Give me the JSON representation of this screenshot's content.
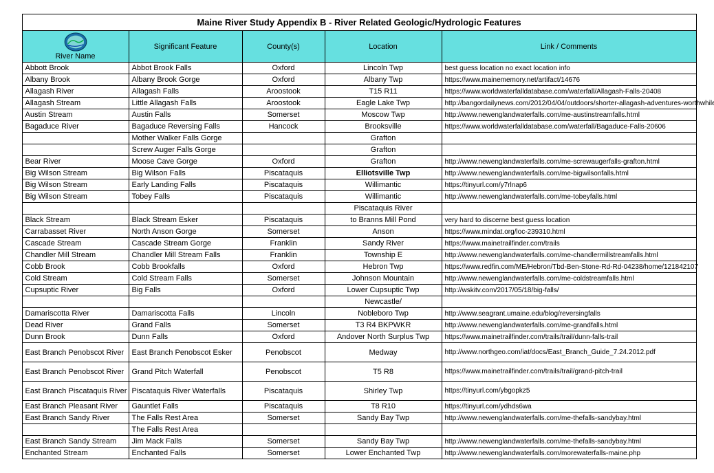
{
  "title": "Maine River Study Appendix B - River Related Geologic/Hydrologic Features",
  "header": {
    "bg_color": "#66e0e0",
    "river_name_label": "River Name",
    "feature_label": "Significant Feature",
    "county_label": "County(s)",
    "location_label": "Location",
    "link_label": "Link / Comments"
  },
  "rows": [
    {
      "r": "Abbott Brook",
      "f": "Abbot Brook Falls",
      "c": "Oxford",
      "l": "Lincoln Twp",
      "k": "best guess location no exact location info"
    },
    {
      "r": "Albany Brook",
      "f": "Albany Brook Gorge",
      "c": "Oxford",
      "l": "Albany Twp",
      "k": "https://www.mainememory.net/artifact/14676"
    },
    {
      "r": "Allagash River",
      "f": "Allagash Falls",
      "c": "Aroostook",
      "l": "T15 R11",
      "k": "https://www.worldwaterfalldatabase.com/waterfall/Allagash-Falls-20408"
    },
    {
      "r": "Allagash Stream",
      "f": "Little Allagash Falls",
      "c": "Aroostook",
      "l": "Eagle Lake Twp",
      "k": "http://bangordailynews.com/2012/04/04/outdoors/shorter-allagash-adventures-worthwhile"
    },
    {
      "r": "Austin Stream",
      "f": "Austin Falls",
      "c": "Somerset",
      "l": "Moscow Twp",
      "k": "http://www.newenglandwaterfalls.com/me-austinstreamfalls.html"
    },
    {
      "r": "Bagaduce River",
      "f": "Bagaduce Reversing Falls",
      "c": "Hancock",
      "l": "Brooksville",
      "k": "https://www.worldwaterfalldatabase.com/waterfall/Bagaduce-Falls-20606"
    },
    {
      "r": "",
      "f": "Mother Walker Falls Gorge",
      "c": "",
      "l": "Grafton",
      "k": ""
    },
    {
      "r": "",
      "f": "Screw Auger Falls Gorge",
      "c": "",
      "l": "Grafton",
      "k": ""
    },
    {
      "r": "Bear River",
      "f": "Moose Cave Gorge",
      "c": "Oxford",
      "l": "Grafton",
      "k": "http://www.newenglandwaterfalls.com/me-screwaugerfalls-grafton.html"
    },
    {
      "r": "Big Wilson Stream",
      "f": "Big Wilson Falls",
      "c": "Piscataquis",
      "l": "Elliotsville Twp",
      "lb": true,
      "k": "http://www.newenglandwaterfalls.com/me-bigwilsonfalls.html"
    },
    {
      "r": "Big Wilson Stream",
      "f": "Early Landing Falls",
      "c": "Piscataquis",
      "l": "Willimantic",
      "k": "https://tinyurl.com/y7rlnap6"
    },
    {
      "r": "Big Wilson Stream",
      "f": "Tobey Falls",
      "c": "Piscataquis",
      "l": "Willimantic",
      "k": "http://www.newenglandwaterfalls.com/me-tobeyfalls.html"
    },
    {
      "r": "",
      "f": "",
      "c": "",
      "l": "Piscataquis River",
      "k": ""
    },
    {
      "r": "Black Stream",
      "f": "Black Stream Esker",
      "c": "Piscataquis",
      "l": "to Branns Mill Pond",
      "k": "very hard to discerne best guess location"
    },
    {
      "r": "Carrabasset River",
      "f": "North Anson Gorge",
      "c": "Somerset",
      "l": "Anson",
      "k": "https://www.mindat.org/loc-239310.html"
    },
    {
      "r": "Cascade Stream",
      "f": "Cascade Stream Gorge",
      "c": "Franklin",
      "l": "Sandy River",
      "k": "https://www.mainetrailfinder.com/trails"
    },
    {
      "r": "Chandler Mill Stream",
      "f": "Chandler Mill Stream Falls",
      "c": "Franklin",
      "l": "Township E",
      "k": "http://www.newenglandwaterfalls.com/me-chandlermillstreamfalls.html"
    },
    {
      "r": "Cobb Brook",
      "f": "Cobb Brookfalls",
      "c": "Oxford",
      "l": "Hebron Twp",
      "k": "https://www.redfin.com/ME/Hebron/Tbd-Ben-Stone-Rd-Rd-04238/home/121842107"
    },
    {
      "r": "Cold Stream",
      "f": "Cold Stream Falls",
      "c": "Somerset",
      "l": "Johnson Mountain",
      "k": "http://www.newenglandwaterfalls.com/me-coldstreamfalls.html"
    },
    {
      "r": "Cupsuptic River",
      "f": "Big Falls",
      "c": "Oxford",
      "l": "Lower Cupsuptic Twp",
      "k": "http://wskitv.com/2017/05/18/big-falls/"
    },
    {
      "r": "",
      "f": "",
      "c": "",
      "l": "Newcastle/",
      "k": ""
    },
    {
      "r": "Damariscotta River",
      "f": "Damariscotta Falls",
      "c": "Lincoln",
      "l": "Nobleboro Twp",
      "k": "http://www.seagrant.umaine.edu/blog/reversingfalls"
    },
    {
      "r": "Dead River",
      "f": "Grand Falls",
      "c": "Somerset",
      "l": "T3 R4 BKPWKR",
      "k": "http://www.newenglandwaterfalls.com/me-grandfalls.html"
    },
    {
      "r": "Dunn Brook",
      "f": "Dunn Falls",
      "c": "Oxford",
      "l": "Andover North Surplus Twp",
      "k": "https://www.mainetrailfinder.com/trails/trail/dunn-falls-trail"
    },
    {
      "r": "East Branch Penobscot River",
      "f": "East Branch Penobscot Esker",
      "c": "Penobscot",
      "l": "Medway",
      "k": "http://www.northgeo.com/iat/docs/East_Branch_Guide_7.24.2012.pdf",
      "tall": true
    },
    {
      "r": "East Branch Penobscot River",
      "f": "Grand Pitch Waterfall",
      "c": "Penobscot",
      "l": "T5 R8",
      "k": "https://www.mainetrailfinder.com/trails/trail/grand-pitch-trail",
      "tall": true
    },
    {
      "r": "East Branch Piscataquis River",
      "f": "Piscataquis River Waterfalls",
      "c": "Piscataquis",
      "l": "Shirley Twp",
      "k": "https://tinyurl.com/ybgopkz5",
      "tall": true
    },
    {
      "r": "East Branch Pleasant River",
      "f": "Gauntlet Falls",
      "c": "Piscataquis",
      "l": "T8 R10",
      "k": "https://tinyurl.com/ydhds6wa"
    },
    {
      "r": "East Branch Sandy River",
      "f": "The Falls Rest Area",
      "c": "Somerset",
      "l": "Sandy Bay Twp",
      "k": "http://www.newenglandwaterfalls.com/me-thefalls-sandybay.html"
    },
    {
      "r": "",
      "f": "The Falls Rest Area",
      "c": "",
      "l": "",
      "k": ""
    },
    {
      "r": "East Branch Sandy Stream",
      "f": "Jim Mack Falls",
      "c": "Somerset",
      "l": "Sandy Bay Twp",
      "k": "http://www.newenglandwaterfalls.com/me-thefalls-sandybay.html"
    },
    {
      "r": "Enchanted Stream",
      "f": "Enchanted Falls",
      "c": "Somerset",
      "l": "Lower Enchanted Twp",
      "k": "http://www.newenglandwaterfalls.com/morewaterfalls-maine.php"
    }
  ]
}
